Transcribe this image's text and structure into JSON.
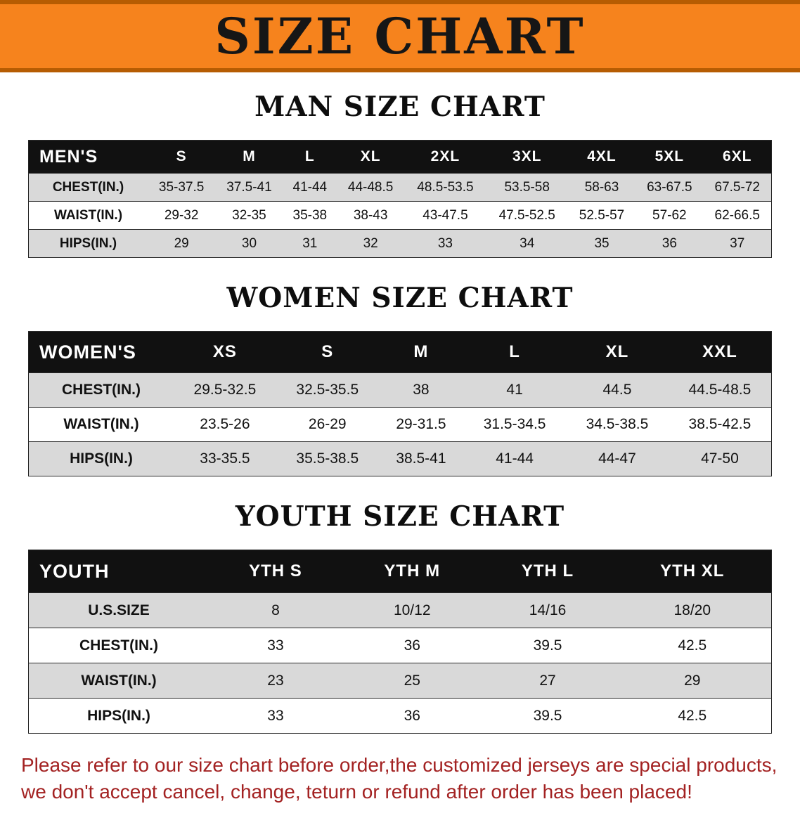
{
  "banner": {
    "title": "SIZE CHART"
  },
  "sections": [
    {
      "heading": "MAN SIZE CHART",
      "table": {
        "header": [
          "MEN'S",
          "S",
          "M",
          "L",
          "XL",
          "2XL",
          "3XL",
          "4XL",
          "5XL",
          "6XL"
        ],
        "rows": [
          [
            "CHEST(IN.)",
            "35-37.5",
            "37.5-41",
            "41-44",
            "44-48.5",
            "48.5-53.5",
            "53.5-58",
            "58-63",
            "63-67.5",
            "67.5-72"
          ],
          [
            "WAIST(IN.)",
            "29-32",
            "32-35",
            "35-38",
            "38-43",
            "43-47.5",
            "47.5-52.5",
            "52.5-57",
            "57-62",
            "62-66.5"
          ],
          [
            "HIPS(IN.)",
            "29",
            "30",
            "31",
            "32",
            "33",
            "34",
            "35",
            "36",
            "37"
          ]
        ]
      }
    },
    {
      "heading": "WOMEN SIZE CHART",
      "table": {
        "header": [
          "WOMEN'S",
          "XS",
          "S",
          "M",
          "L",
          "XL",
          "XXL"
        ],
        "rows": [
          [
            "CHEST(IN.)",
            "29.5-32.5",
            "32.5-35.5",
            "38",
            "41",
            "44.5",
            "44.5-48.5"
          ],
          [
            "WAIST(IN.)",
            "23.5-26",
            "26-29",
            "29-31.5",
            "31.5-34.5",
            "34.5-38.5",
            "38.5-42.5"
          ],
          [
            "HIPS(IN.)",
            "33-35.5",
            "35.5-38.5",
            "38.5-41",
            "41-44",
            "44-47",
            "47-50"
          ]
        ]
      }
    },
    {
      "heading": "YOUTH SIZE CHART",
      "table": {
        "header": [
          "YOUTH",
          "YTH S",
          "YTH M",
          "YTH L",
          "YTH XL"
        ],
        "rows": [
          [
            "U.S.SIZE",
            "8",
            "10/12",
            "14/16",
            "18/20"
          ],
          [
            "CHEST(IN.)",
            "33",
            "36",
            "39.5",
            "42.5"
          ],
          [
            "WAIST(IN.)",
            "23",
            "25",
            "27",
            "29"
          ],
          [
            "HIPS(IN.)",
            "33",
            "36",
            "39.5",
            "42.5"
          ]
        ]
      }
    }
  ],
  "disclaimer": {
    "line1": "Please refer to our size chart before order,the customized jerseys are special products,",
    "line2": "we don't accept cancel, change, teturn or refund after order has been placed!"
  },
  "colors": {
    "banner_bg": "#f6831d",
    "banner_border": "#b65c02",
    "header_row_bg": "#111111",
    "row_alt_bg": "#d9d9d9",
    "disclaimer_color": "#a32222"
  }
}
